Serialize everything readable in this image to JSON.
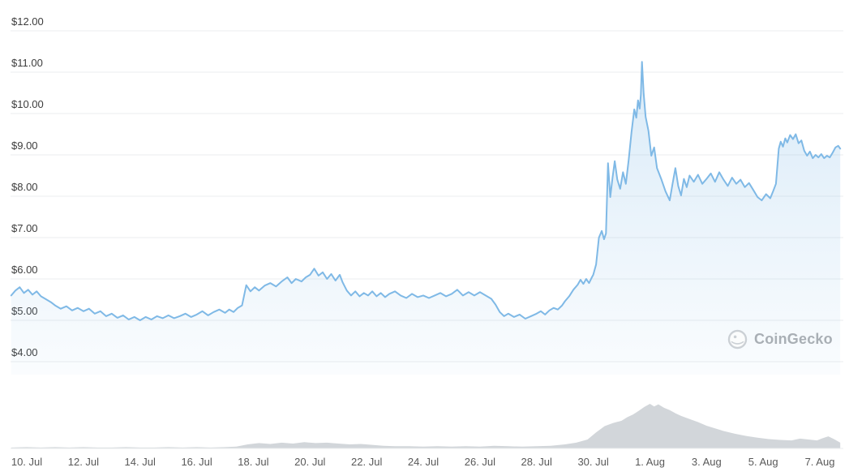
{
  "watermark": {
    "label": "CoinGecko"
  },
  "style": {
    "background": "#ffffff",
    "line_color": "#7fb9e6",
    "area_top_opacity": 0.3,
    "area_bottom_opacity": 0.04,
    "volume_color": "#d2d6da",
    "grid_color": "#ebedef",
    "y_label_color": "#3c3c3c",
    "x_label_color": "#585858",
    "watermark_color": "#a9afb5"
  },
  "chart_data": {
    "type": "area",
    "title": "",
    "xlabel": "",
    "legend": "none",
    "grid": "horizontal",
    "watermark": "CoinGecko",
    "y_axis": {
      "unit": "USD",
      "ticks": [
        {
          "label": "$12.00",
          "value": 12
        },
        {
          "label": "$11.00",
          "value": 11
        },
        {
          "label": "$10.00",
          "value": 10
        },
        {
          "label": "$9.00",
          "value": 9
        },
        {
          "label": "$8.00",
          "value": 8
        },
        {
          "label": "$7.00",
          "value": 7
        },
        {
          "label": "$6.00",
          "value": 6
        },
        {
          "label": "$5.00",
          "value": 5
        },
        {
          "label": "$4.00",
          "value": 4
        }
      ]
    },
    "x_axis": {
      "unit": "days since 10 Jul",
      "range_days": [
        -0.55,
        28.72
      ],
      "ticks": [
        {
          "label": "10. Jul",
          "day": 0
        },
        {
          "label": "12. Jul",
          "day": 2
        },
        {
          "label": "14. Jul",
          "day": 4
        },
        {
          "label": "16. Jul",
          "day": 6
        },
        {
          "label": "18. Jul",
          "day": 8
        },
        {
          "label": "20. Jul",
          "day": 10
        },
        {
          "label": "22. Jul",
          "day": 12
        },
        {
          "label": "24. Jul",
          "day": 14
        },
        {
          "label": "26. Jul",
          "day": 16
        },
        {
          "label": "28. Jul",
          "day": 18
        },
        {
          "label": "30. Jul",
          "day": 20
        },
        {
          "label": "1. Aug",
          "day": 22
        },
        {
          "label": "3. Aug",
          "day": 24
        },
        {
          "label": "5. Aug",
          "day": 26
        },
        {
          "label": "7. Aug",
          "day": 28
        }
      ]
    },
    "series": [
      {
        "name": "price",
        "unit": "USD",
        "min_observed": 5.0,
        "max_observed": 11.25,
        "points": [
          [
            -0.55,
            5.6
          ],
          [
            -0.4,
            5.72
          ],
          [
            -0.25,
            5.8
          ],
          [
            -0.1,
            5.66
          ],
          [
            0.05,
            5.74
          ],
          [
            0.2,
            5.62
          ],
          [
            0.35,
            5.7
          ],
          [
            0.5,
            5.58
          ],
          [
            0.7,
            5.5
          ],
          [
            0.85,
            5.44
          ],
          [
            1.0,
            5.36
          ],
          [
            1.2,
            5.28
          ],
          [
            1.4,
            5.34
          ],
          [
            1.6,
            5.24
          ],
          [
            1.8,
            5.3
          ],
          [
            2.0,
            5.22
          ],
          [
            2.2,
            5.28
          ],
          [
            2.4,
            5.16
          ],
          [
            2.6,
            5.22
          ],
          [
            2.8,
            5.1
          ],
          [
            3.0,
            5.16
          ],
          [
            3.2,
            5.06
          ],
          [
            3.4,
            5.12
          ],
          [
            3.6,
            5.02
          ],
          [
            3.8,
            5.08
          ],
          [
            4.0,
            5.0
          ],
          [
            4.2,
            5.08
          ],
          [
            4.4,
            5.02
          ],
          [
            4.6,
            5.1
          ],
          [
            4.8,
            5.05
          ],
          [
            5.0,
            5.12
          ],
          [
            5.2,
            5.05
          ],
          [
            5.4,
            5.1
          ],
          [
            5.6,
            5.16
          ],
          [
            5.8,
            5.08
          ],
          [
            6.0,
            5.14
          ],
          [
            6.2,
            5.22
          ],
          [
            6.4,
            5.12
          ],
          [
            6.6,
            5.2
          ],
          [
            6.8,
            5.26
          ],
          [
            7.0,
            5.18
          ],
          [
            7.15,
            5.26
          ],
          [
            7.3,
            5.2
          ],
          [
            7.45,
            5.3
          ],
          [
            7.6,
            5.36
          ],
          [
            7.75,
            5.85
          ],
          [
            7.9,
            5.7
          ],
          [
            8.05,
            5.8
          ],
          [
            8.2,
            5.72
          ],
          [
            8.4,
            5.84
          ],
          [
            8.6,
            5.9
          ],
          [
            8.8,
            5.82
          ],
          [
            9.0,
            5.94
          ],
          [
            9.2,
            6.04
          ],
          [
            9.35,
            5.9
          ],
          [
            9.5,
            6.0
          ],
          [
            9.7,
            5.94
          ],
          [
            9.85,
            6.04
          ],
          [
            10.0,
            6.1
          ],
          [
            10.15,
            6.25
          ],
          [
            10.3,
            6.08
          ],
          [
            10.45,
            6.16
          ],
          [
            10.6,
            6.0
          ],
          [
            10.75,
            6.12
          ],
          [
            10.9,
            5.96
          ],
          [
            11.05,
            6.1
          ],
          [
            11.15,
            5.92
          ],
          [
            11.3,
            5.72
          ],
          [
            11.45,
            5.6
          ],
          [
            11.6,
            5.7
          ],
          [
            11.75,
            5.58
          ],
          [
            11.9,
            5.66
          ],
          [
            12.05,
            5.6
          ],
          [
            12.2,
            5.7
          ],
          [
            12.35,
            5.58
          ],
          [
            12.5,
            5.66
          ],
          [
            12.65,
            5.56
          ],
          [
            12.8,
            5.64
          ],
          [
            13.0,
            5.7
          ],
          [
            13.2,
            5.6
          ],
          [
            13.4,
            5.54
          ],
          [
            13.6,
            5.64
          ],
          [
            13.8,
            5.56
          ],
          [
            14.0,
            5.6
          ],
          [
            14.2,
            5.54
          ],
          [
            14.4,
            5.6
          ],
          [
            14.6,
            5.66
          ],
          [
            14.8,
            5.58
          ],
          [
            15.0,
            5.64
          ],
          [
            15.2,
            5.74
          ],
          [
            15.4,
            5.6
          ],
          [
            15.6,
            5.68
          ],
          [
            15.8,
            5.6
          ],
          [
            16.0,
            5.68
          ],
          [
            16.2,
            5.6
          ],
          [
            16.4,
            5.52
          ],
          [
            16.55,
            5.38
          ],
          [
            16.7,
            5.2
          ],
          [
            16.85,
            5.1
          ],
          [
            17.0,
            5.16
          ],
          [
            17.2,
            5.08
          ],
          [
            17.4,
            5.14
          ],
          [
            17.6,
            5.04
          ],
          [
            17.8,
            5.1
          ],
          [
            18.0,
            5.16
          ],
          [
            18.15,
            5.22
          ],
          [
            18.3,
            5.14
          ],
          [
            18.45,
            5.24
          ],
          [
            18.6,
            5.3
          ],
          [
            18.75,
            5.26
          ],
          [
            18.9,
            5.36
          ],
          [
            19.0,
            5.46
          ],
          [
            19.15,
            5.58
          ],
          [
            19.3,
            5.74
          ],
          [
            19.45,
            5.86
          ],
          [
            19.55,
            5.98
          ],
          [
            19.65,
            5.88
          ],
          [
            19.75,
            6.0
          ],
          [
            19.85,
            5.9
          ],
          [
            19.95,
            6.04
          ],
          [
            20.0,
            6.1
          ],
          [
            20.1,
            6.35
          ],
          [
            20.2,
            7.0
          ],
          [
            20.3,
            7.16
          ],
          [
            20.38,
            6.96
          ],
          [
            20.45,
            7.1
          ],
          [
            20.52,
            8.8
          ],
          [
            20.6,
            7.98
          ],
          [
            20.68,
            8.45
          ],
          [
            20.76,
            8.85
          ],
          [
            20.85,
            8.4
          ],
          [
            20.95,
            8.18
          ],
          [
            21.05,
            8.58
          ],
          [
            21.15,
            8.3
          ],
          [
            21.25,
            8.88
          ],
          [
            21.35,
            9.55
          ],
          [
            21.45,
            10.1
          ],
          [
            21.52,
            9.9
          ],
          [
            21.58,
            10.32
          ],
          [
            21.64,
            10.12
          ],
          [
            21.68,
            10.45
          ],
          [
            21.72,
            11.25
          ],
          [
            21.78,
            10.48
          ],
          [
            21.85,
            9.92
          ],
          [
            21.95,
            9.58
          ],
          [
            22.05,
            8.98
          ],
          [
            22.15,
            9.18
          ],
          [
            22.25,
            8.68
          ],
          [
            22.4,
            8.42
          ],
          [
            22.55,
            8.12
          ],
          [
            22.7,
            7.9
          ],
          [
            22.8,
            8.3
          ],
          [
            22.9,
            8.68
          ],
          [
            23.0,
            8.25
          ],
          [
            23.1,
            8.02
          ],
          [
            23.2,
            8.42
          ],
          [
            23.3,
            8.22
          ],
          [
            23.4,
            8.5
          ],
          [
            23.55,
            8.35
          ],
          [
            23.7,
            8.52
          ],
          [
            23.85,
            8.3
          ],
          [
            24.0,
            8.42
          ],
          [
            24.15,
            8.55
          ],
          [
            24.3,
            8.35
          ],
          [
            24.45,
            8.58
          ],
          [
            24.6,
            8.4
          ],
          [
            24.75,
            8.25
          ],
          [
            24.9,
            8.45
          ],
          [
            25.05,
            8.3
          ],
          [
            25.2,
            8.4
          ],
          [
            25.35,
            8.22
          ],
          [
            25.5,
            8.32
          ],
          [
            25.65,
            8.15
          ],
          [
            25.8,
            7.98
          ],
          [
            25.95,
            7.9
          ],
          [
            26.1,
            8.05
          ],
          [
            26.25,
            7.95
          ],
          [
            26.35,
            8.12
          ],
          [
            26.45,
            8.3
          ],
          [
            26.55,
            9.15
          ],
          [
            26.62,
            9.32
          ],
          [
            26.7,
            9.2
          ],
          [
            26.78,
            9.4
          ],
          [
            26.85,
            9.3
          ],
          [
            26.95,
            9.48
          ],
          [
            27.05,
            9.38
          ],
          [
            27.15,
            9.5
          ],
          [
            27.25,
            9.28
          ],
          [
            27.35,
            9.35
          ],
          [
            27.45,
            9.1
          ],
          [
            27.55,
            8.98
          ],
          [
            27.65,
            9.08
          ],
          [
            27.75,
            8.92
          ],
          [
            27.85,
            9.0
          ],
          [
            27.95,
            8.94
          ],
          [
            28.05,
            9.02
          ],
          [
            28.15,
            8.92
          ],
          [
            28.25,
            8.98
          ],
          [
            28.35,
            8.94
          ],
          [
            28.45,
            9.05
          ],
          [
            28.55,
            9.18
          ],
          [
            28.65,
            9.22
          ],
          [
            28.72,
            9.15
          ]
        ]
      },
      {
        "name": "volume",
        "normalized": true,
        "points": [
          [
            -0.55,
            0.02
          ],
          [
            0,
            0.03
          ],
          [
            0.5,
            0.02
          ],
          [
            1,
            0.03
          ],
          [
            1.5,
            0.02
          ],
          [
            2,
            0.03
          ],
          [
            2.5,
            0.02
          ],
          [
            3,
            0.02
          ],
          [
            3.5,
            0.03
          ],
          [
            4,
            0.02
          ],
          [
            4.5,
            0.02
          ],
          [
            5,
            0.03
          ],
          [
            5.5,
            0.02
          ],
          [
            6,
            0.03
          ],
          [
            6.5,
            0.02
          ],
          [
            7,
            0.03
          ],
          [
            7.4,
            0.04
          ],
          [
            7.8,
            0.09
          ],
          [
            8.2,
            0.12
          ],
          [
            8.6,
            0.1
          ],
          [
            9,
            0.13
          ],
          [
            9.4,
            0.11
          ],
          [
            9.8,
            0.14
          ],
          [
            10.2,
            0.12
          ],
          [
            10.6,
            0.13
          ],
          [
            11,
            0.11
          ],
          [
            11.4,
            0.09
          ],
          [
            11.8,
            0.1
          ],
          [
            12.2,
            0.08
          ],
          [
            12.6,
            0.06
          ],
          [
            13,
            0.05
          ],
          [
            13.5,
            0.05
          ],
          [
            14,
            0.04
          ],
          [
            14.5,
            0.05
          ],
          [
            15,
            0.04
          ],
          [
            15.5,
            0.05
          ],
          [
            16,
            0.04
          ],
          [
            16.5,
            0.06
          ],
          [
            17,
            0.05
          ],
          [
            17.5,
            0.04
          ],
          [
            18,
            0.05
          ],
          [
            18.5,
            0.06
          ],
          [
            19,
            0.09
          ],
          [
            19.4,
            0.13
          ],
          [
            19.8,
            0.2
          ],
          [
            20.1,
            0.36
          ],
          [
            20.4,
            0.5
          ],
          [
            20.7,
            0.57
          ],
          [
            21,
            0.62
          ],
          [
            21.2,
            0.7
          ],
          [
            21.4,
            0.76
          ],
          [
            21.6,
            0.84
          ],
          [
            21.8,
            0.93
          ],
          [
            22,
            1
          ],
          [
            22.15,
            0.94
          ],
          [
            22.3,
            0.99
          ],
          [
            22.5,
            0.91
          ],
          [
            22.7,
            0.86
          ],
          [
            22.9,
            0.79
          ],
          [
            23.1,
            0.73
          ],
          [
            23.4,
            0.66
          ],
          [
            23.7,
            0.59
          ],
          [
            24,
            0.51
          ],
          [
            24.3,
            0.45
          ],
          [
            24.6,
            0.39
          ],
          [
            25,
            0.33
          ],
          [
            25.4,
            0.28
          ],
          [
            25.8,
            0.24
          ],
          [
            26.2,
            0.21
          ],
          [
            26.6,
            0.19
          ],
          [
            27,
            0.18
          ],
          [
            27.3,
            0.22
          ],
          [
            27.6,
            0.2
          ],
          [
            27.9,
            0.18
          ],
          [
            28.1,
            0.23
          ],
          [
            28.3,
            0.27
          ],
          [
            28.5,
            0.21
          ],
          [
            28.72,
            0.13
          ]
        ]
      }
    ]
  }
}
